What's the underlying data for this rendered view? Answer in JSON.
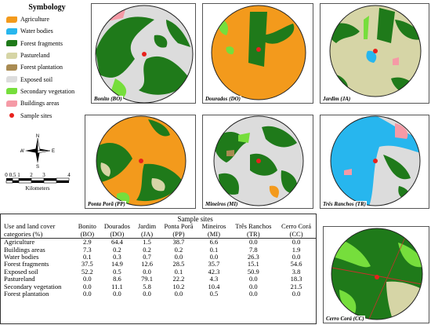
{
  "colors": {
    "agriculture": "#f39a1c",
    "water": "#27b6ee",
    "forest": "#1f7a1a",
    "pasture": "#d6d5a6",
    "plantation": "#a98b52",
    "soil": "#dcdcdc",
    "secondary": "#76de3c",
    "buildings": "#f59aa6",
    "sample": "#e8211c"
  },
  "legend": {
    "title": "Symbology",
    "items": [
      {
        "key": "agriculture",
        "label": "Agriculture"
      },
      {
        "key": "water",
        "label": "Water bodies"
      },
      {
        "key": "forest",
        "label": "Forest fragments"
      },
      {
        "key": "pasture",
        "label": "Pastureland"
      },
      {
        "key": "plantation",
        "label": "Forest plantation"
      },
      {
        "key": "soil",
        "label": "Exposed soil"
      },
      {
        "key": "secondary",
        "label": "Secondary vegetation"
      },
      {
        "key": "buildings",
        "label": "Buildings areas"
      },
      {
        "key": "sample",
        "label": "Sample sites"
      }
    ]
  },
  "compass": {
    "n": "N",
    "s": "S",
    "e": "E",
    "w": "W"
  },
  "scale": {
    "ticks": [
      "0",
      "0.5",
      "1",
      "2",
      "3",
      "4"
    ],
    "unit": "Kilometers"
  },
  "maps": [
    {
      "id": "bonito",
      "label": "Bonito (BO)",
      "base": "soil"
    },
    {
      "id": "dourados",
      "label": "Dourados (DO)",
      "base": "agriculture"
    },
    {
      "id": "jardim",
      "label": "Jardim (JA)",
      "base": "pasture"
    },
    {
      "id": "pontapora",
      "label": "Ponta Porã (PP)",
      "base": "agriculture"
    },
    {
      "id": "mineiros",
      "label": "Mineiros (MI)",
      "base": "soil"
    },
    {
      "id": "tresranchos",
      "label": "Três Ranchos (TR)",
      "base": "water"
    },
    {
      "id": "cerrocora",
      "label": "Cerro Corá (CC)",
      "base": "forest"
    }
  ],
  "table": {
    "group_header": "Sample sites",
    "category_header_1": "Use and land cover",
    "category_header_2": "categories (%)",
    "columns": [
      {
        "name": "Bonito",
        "code": "(BO)"
      },
      {
        "name": "Dourados",
        "code": "(DO)"
      },
      {
        "name": "Jardim",
        "code": "(JA)"
      },
      {
        "name": "Ponta Porã",
        "code": "(PP)"
      },
      {
        "name": "Mineiros",
        "code": "(MI)"
      },
      {
        "name": "Três Ranchos",
        "code": "(TR)"
      },
      {
        "name": "Cerro Corá",
        "code": "(CC)"
      }
    ],
    "rows": [
      {
        "category": "Agriculture",
        "values": [
          "2.9",
          "64.4",
          "1.5",
          "38.7",
          "6.6",
          "0.0",
          "0.0"
        ]
      },
      {
        "category": "Buildings areas",
        "values": [
          "7.3",
          "0.2",
          "0.2",
          "0.2",
          "0.1",
          "7.8",
          "1.9"
        ]
      },
      {
        "category": "Water bodies",
        "values": [
          "0.1",
          "0.3",
          "0.7",
          "0.0",
          "0.0",
          "26.3",
          "0.0"
        ]
      },
      {
        "category": "Forest fragments",
        "values": [
          "37.5",
          "14.9",
          "12.6",
          "28.5",
          "35.7",
          "15.1",
          "54.6"
        ]
      },
      {
        "category": "Exposed soil",
        "values": [
          "52.2",
          "0.5",
          "0.0",
          "0.1",
          "42.3",
          "50.9",
          "3.8"
        ]
      },
      {
        "category": "Pastureland",
        "values": [
          "0.0",
          "8.6",
          "79.1",
          "22.2",
          "4.3",
          "0.0",
          "18.3"
        ]
      },
      {
        "category": "Secondary vegetation",
        "values": [
          "0.0",
          "11.1",
          "5.8",
          "10.2",
          "10.4",
          "0.0",
          "21.5"
        ]
      },
      {
        "category": "Forest plantation",
        "values": [
          "0.0",
          "0.0",
          "0.0",
          "0.0",
          "0.5",
          "0.0",
          "0.0"
        ]
      }
    ]
  }
}
